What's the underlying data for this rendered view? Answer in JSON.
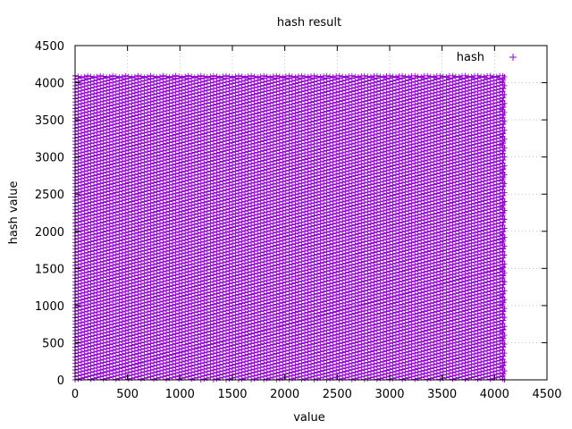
{
  "chart_data": {
    "type": "scatter",
    "title": "hash result",
    "xlabel": "value",
    "ylabel": "hash value",
    "xlim": [
      0,
      4500
    ],
    "ylim": [
      0,
      4500
    ],
    "xticks": [
      0,
      500,
      1000,
      1500,
      2000,
      2500,
      3000,
      3500,
      4000,
      4500
    ],
    "yticks": [
      0,
      500,
      1000,
      1500,
      2000,
      2500,
      3000,
      3500,
      4000,
      4500
    ],
    "grid": true,
    "legend_position": "top-right",
    "marker": "plus",
    "series": [
      {
        "name": "hash",
        "color": "#9400d3",
        "x_range": [
          0,
          4095
        ],
        "y_range": [
          0,
          4095
        ],
        "description_pattern": "dense diagonal lattice of hash values filling 0–4095 on both axes"
      }
    ]
  }
}
